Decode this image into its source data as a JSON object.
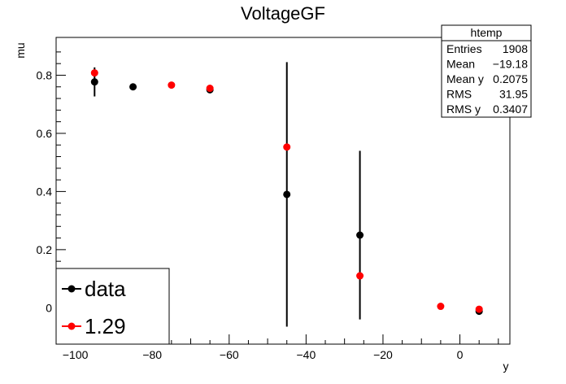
{
  "chart_data": {
    "type": "scatter",
    "title": "VoltageGF",
    "xlabel": "y",
    "ylabel": "mu",
    "xlim": [
      -105,
      13
    ],
    "ylim": [
      -0.125,
      0.93
    ],
    "x_ticks": [
      -100,
      -80,
      -60,
      -40,
      -20,
      0
    ],
    "x_tick_labels": [
      "−100",
      "−80",
      "−60",
      "−40",
      "−20",
      "0"
    ],
    "y_ticks": [
      0,
      0.2,
      0.4,
      0.6,
      0.8
    ],
    "y_tick_labels": [
      "0",
      "0.2",
      "0.4",
      "0.6",
      "0.8"
    ],
    "series": [
      {
        "name": "data",
        "color": "#000000",
        "points": [
          {
            "x": -95,
            "y": 0.777,
            "err": 0.05
          },
          {
            "x": -85,
            "y": 0.76,
            "err": 0.0
          },
          {
            "x": -65,
            "y": 0.75,
            "err": 0.0
          },
          {
            "x": -45,
            "y": 0.39,
            "err": 0.455
          },
          {
            "x": -26,
            "y": 0.25,
            "err": 0.29
          },
          {
            "x": 5,
            "y": -0.012,
            "err": 0.0
          }
        ]
      },
      {
        "name": "1.29",
        "color": "#ff0000",
        "points": [
          {
            "x": -95,
            "y": 0.808
          },
          {
            "x": -75,
            "y": 0.766
          },
          {
            "x": -65,
            "y": 0.755
          },
          {
            "x": -45,
            "y": 0.553
          },
          {
            "x": -26,
            "y": 0.11
          },
          {
            "x": -5,
            "y": 0.005
          },
          {
            "x": 5,
            "y": -0.005
          }
        ]
      }
    ],
    "stats_box": {
      "title": "htemp",
      "rows": [
        {
          "label": "Entries",
          "value": "1908"
        },
        {
          "label": "Mean",
          "value": "−19.18"
        },
        {
          "label": "Mean y",
          "value": "0.2075"
        },
        {
          "label": "RMS",
          "value": "31.95"
        },
        {
          "label": "RMS y",
          "value": "0.3407"
        }
      ]
    },
    "legend": {
      "placement": "bottom-left",
      "entries": [
        {
          "label": "data",
          "color": "#000000"
        },
        {
          "label": "1.29",
          "color": "#ff0000"
        }
      ]
    },
    "grid": false
  }
}
